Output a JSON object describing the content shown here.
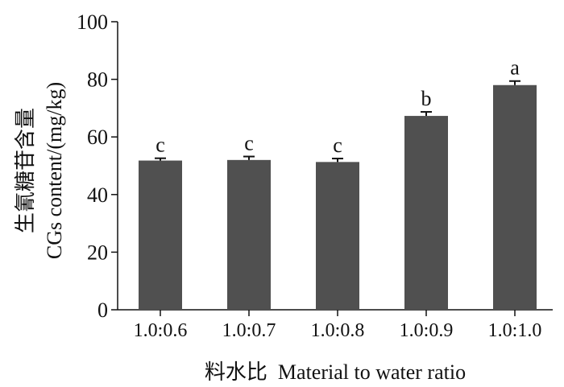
{
  "chart_data": {
    "type": "bar",
    "categories": [
      "1.0:0.6",
      "1.0:0.7",
      "1.0:0.8",
      "1.0:0.9",
      "1.0:1.0"
    ],
    "values": [
      51.8,
      52.0,
      51.3,
      67.3,
      78.0
    ],
    "errors": [
      0.8,
      1.2,
      1.2,
      1.4,
      1.4
    ],
    "significance": [
      "c",
      "c",
      "c",
      "b",
      "a"
    ],
    "ylim": [
      0,
      100
    ],
    "yticks": [
      0,
      20,
      40,
      60,
      80,
      100
    ],
    "ylabel_cn": "生氰糖苷含量",
    "ylabel_en": "CGs content/(mg/kg)",
    "xlabel": "料水比  Material to water ratio",
    "bar_color": "#505050",
    "grid": false
  }
}
